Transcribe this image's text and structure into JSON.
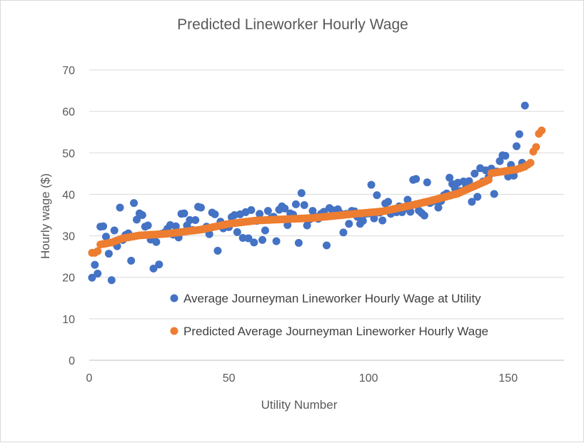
{
  "chart_data": {
    "type": "scatter",
    "title": "Predicted Lineworker Hourly Wage",
    "xlabel": "Utility Number",
    "ylabel": "Hourly wage ($)",
    "xlim": [
      0,
      170
    ],
    "ylim": [
      0,
      70
    ],
    "x_ticks": [
      "0",
      "50",
      "100",
      "150"
    ],
    "y_ticks": [
      "0",
      "10",
      "20",
      "30",
      "40",
      "50",
      "60",
      "70"
    ],
    "grid": "horizontal",
    "legend_position": "bottom-right inside plot",
    "series": [
      {
        "name": "Average Journeyman Lineworker Hourly Wage at Utility",
        "color": "#4472C4",
        "values": [
          19.9,
          23,
          20.9,
          32.2,
          32.3,
          29.8,
          25.7,
          19.3,
          31.3,
          27.5,
          36.8,
          29,
          30.2,
          30.6,
          24,
          37.9,
          33.9,
          35.4,
          35,
          32.2,
          32.5,
          29.1,
          22.1,
          28.5,
          23.1,
          30.5,
          30.8,
          31.7,
          32.6,
          30.3,
          32.3,
          29.6,
          35.3,
          35.4,
          32.5,
          33.8,
          31.4,
          33.8,
          37,
          36.8,
          31.6,
          32.2,
          30.4,
          35.6,
          35.2,
          26.4,
          33.4,
          31.8,
          32.6,
          32.1,
          34.5,
          35,
          30.9,
          35.2,
          29.5,
          35.7,
          29.4,
          36.2,
          28.4,
          33.6,
          35.3,
          29,
          31.3,
          36,
          34.2,
          34.6,
          28.7,
          36.3,
          37.1,
          36.6,
          32.6,
          35.4,
          35.1,
          37.6,
          28.3,
          40.3,
          37.4,
          32.5,
          34,
          36,
          34.6,
          34.1,
          35.3,
          35.8,
          27.7,
          36.7,
          36.2,
          35.9,
          36.4,
          35.4,
          30.8,
          35.3,
          32.9,
          36,
          35.9,
          34.6,
          32.9,
          33.6,
          35.3,
          35.4,
          42.3,
          34.2,
          39.8,
          35.6,
          33.7,
          37.8,
          38.2,
          35.3,
          36.4,
          35.7,
          37.1,
          35.7,
          36.6,
          38.7,
          35.8,
          43.5,
          43.7,
          36.1,
          35.5,
          34.9,
          42.9,
          37.9,
          38.3,
          38.4,
          36.8,
          38.4,
          39.8,
          40.2,
          44,
          42.5,
          41.4,
          42.8,
          40.8,
          43.1,
          41.9,
          43.2,
          38.2,
          45,
          39.4,
          46.3,
          43.1,
          45.8,
          44.2,
          46.2,
          40.1,
          45.5,
          48,
          49.4,
          49.3,
          44.3,
          47.1,
          44.5,
          51.6,
          54.5,
          47.6,
          61.4
        ]
      },
      {
        "name": "Predicted Average Journeyman Lineworker Hourly Wage",
        "color": "#ED7D31",
        "values_start": 1,
        "keyframes": [
          [
            1,
            25.9
          ],
          [
            2,
            25.9
          ],
          [
            3,
            26.3
          ],
          [
            4,
            27.9
          ],
          [
            8,
            28.4
          ],
          [
            12,
            29.4
          ],
          [
            18,
            30.1
          ],
          [
            28,
            30.5
          ],
          [
            40,
            31.5
          ],
          [
            50,
            32.9
          ],
          [
            60,
            33.7
          ],
          [
            80,
            34.3
          ],
          [
            95,
            35.3
          ],
          [
            105,
            35.9
          ],
          [
            115,
            37.3
          ],
          [
            122,
            38.4
          ],
          [
            132,
            40.2
          ],
          [
            143,
            43.5
          ],
          [
            144,
            45.1
          ],
          [
            153,
            46
          ],
          [
            156,
            46.7
          ],
          [
            158,
            47.6
          ],
          [
            159,
            50.3
          ],
          [
            160,
            51.4
          ],
          [
            161,
            54.6
          ],
          [
            162,
            55.4
          ]
        ]
      }
    ]
  }
}
